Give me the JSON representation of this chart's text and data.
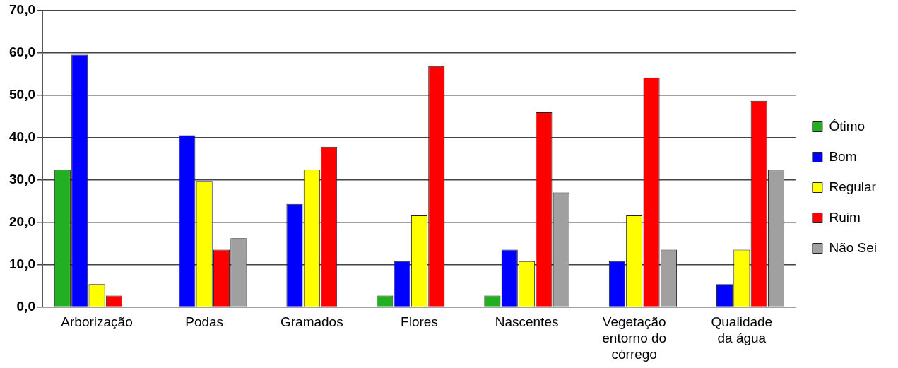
{
  "chart_data": {
    "type": "bar",
    "categories": [
      "Arborização",
      "Podas",
      "Gramados",
      "Flores",
      "Nascentes",
      "Vegetação entorno do córrego",
      "Qualidade da água"
    ],
    "series": [
      {
        "name": "Ótimo",
        "color": "#22b022",
        "values": [
          32.4,
          0,
          0,
          2.7,
          2.7,
          0,
          0
        ]
      },
      {
        "name": "Bom",
        "color": "#0000ff",
        "values": [
          59.5,
          40.5,
          24.3,
          10.8,
          13.5,
          10.8,
          5.4
        ]
      },
      {
        "name": "Regular",
        "color": "#ffff00",
        "values": [
          5.4,
          29.7,
          32.4,
          21.6,
          10.8,
          21.6,
          13.5
        ]
      },
      {
        "name": "Ruim",
        "color": "#ff0000",
        "values": [
          2.7,
          13.5,
          37.8,
          56.8,
          45.9,
          54.1,
          48.6
        ]
      },
      {
        "name": "Não Sei",
        "color": "#a0a0a0",
        "values": [
          0,
          16.2,
          0,
          0,
          27.0,
          13.5,
          32.4
        ]
      }
    ],
    "ylim": [
      0,
      70
    ],
    "yticks": [
      {
        "value": 0,
        "label": "0,0"
      },
      {
        "value": 10,
        "label": "10,0"
      },
      {
        "value": 20,
        "label": "20,0"
      },
      {
        "value": 30,
        "label": "30,0"
      },
      {
        "value": 40,
        "label": "40,0"
      },
      {
        "value": 50,
        "label": "50,0"
      },
      {
        "value": 60,
        "label": "60,0"
      },
      {
        "value": 70,
        "label": "70,0"
      }
    ],
    "grid": "y",
    "legend": "right"
  }
}
